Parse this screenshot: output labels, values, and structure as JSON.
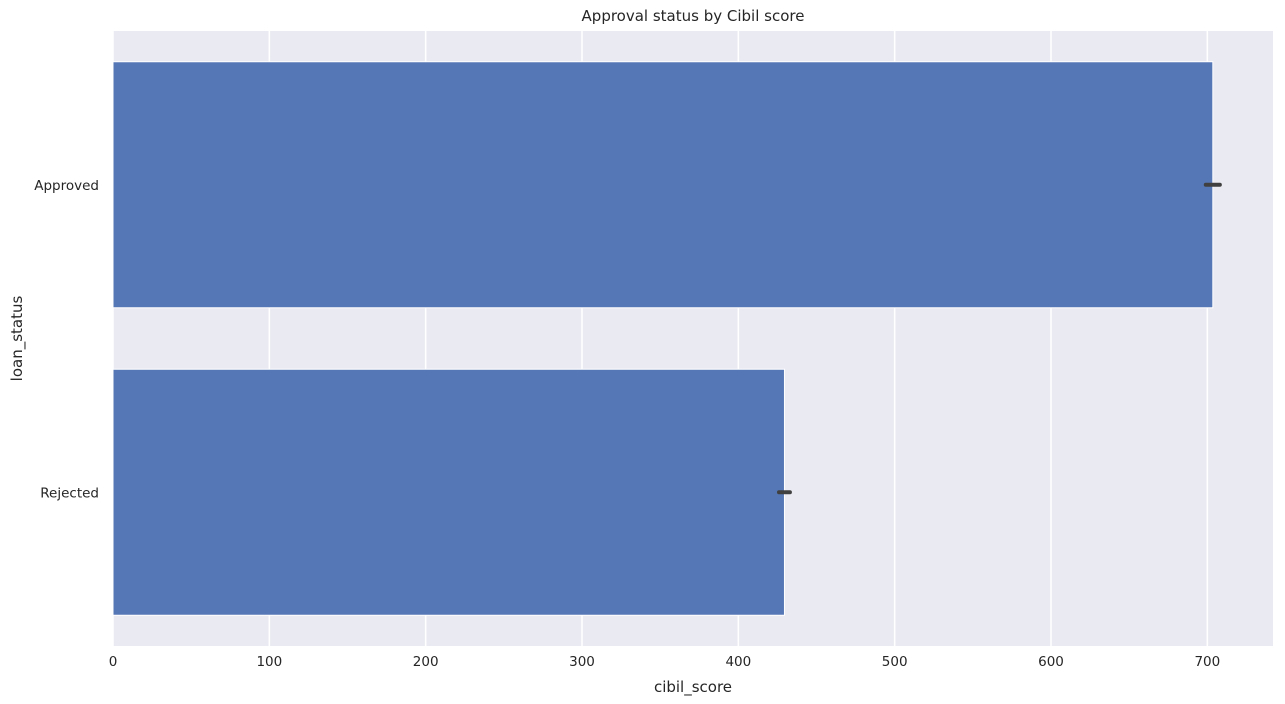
{
  "chart_data": {
    "type": "bar",
    "orientation": "horizontal",
    "title": "Approval status by Cibil score",
    "xlabel": "cibil_score",
    "ylabel": "loan_status",
    "categories": [
      "Approved",
      "Rejected"
    ],
    "values": [
      703.5,
      429.5
    ],
    "error_bars": [
      [
        699,
        708
      ],
      [
        426,
        433
      ]
    ],
    "xlim": [
      0,
      742
    ],
    "xticks": [
      0,
      100,
      200,
      300,
      400,
      500,
      600,
      700
    ],
    "grid": true,
    "colors": {
      "bar": "#5577b5",
      "error": "#404040",
      "background": "#eaeaf2",
      "grid": "#ffffff"
    }
  }
}
